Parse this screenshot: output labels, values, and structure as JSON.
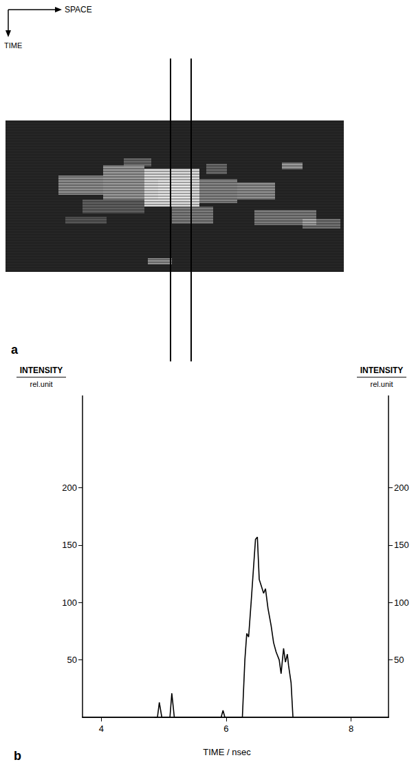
{
  "panel_a": {
    "label": "a",
    "x_arrow_label": "SPACE",
    "y_arrow_label": "TIME"
  },
  "chart_data": {
    "panel_label": "b",
    "type": "line",
    "xlabel": "TIME / nsec",
    "ylabel": [
      "INTENSITY",
      "rel.unit"
    ],
    "y2label": [
      "INTENSITY",
      "rel.unit"
    ],
    "x": [
      4.85,
      4.9,
      4.93,
      4.97,
      5.1,
      5.13,
      5.17,
      5.92,
      5.95,
      5.98,
      6.26,
      6.3,
      6.33,
      6.36,
      6.4,
      6.47,
      6.5,
      6.53,
      6.56,
      6.6,
      6.63,
      6.67,
      6.72,
      6.76,
      6.8,
      6.85,
      6.88,
      6.92,
      6.95,
      6.98,
      7.0,
      7.04,
      7.07
    ],
    "values": [
      0,
      0,
      13,
      0,
      0,
      21,
      0,
      0,
      6,
      0,
      0,
      50,
      73,
      70,
      100,
      155,
      157,
      120,
      115,
      108,
      112,
      95,
      80,
      65,
      57,
      50,
      38,
      60,
      48,
      55,
      45,
      30,
      0
    ],
    "color": "#000000",
    "xlim": [
      3.7,
      8.6
    ],
    "xticks": [
      4,
      6,
      8
    ],
    "ylim": [
      0,
      280
    ],
    "yticks": [
      50,
      100,
      150,
      200
    ],
    "y2lim": [
      0,
      280
    ],
    "y2ticks": [
      50,
      100,
      150,
      200
    ],
    "grid": false
  }
}
